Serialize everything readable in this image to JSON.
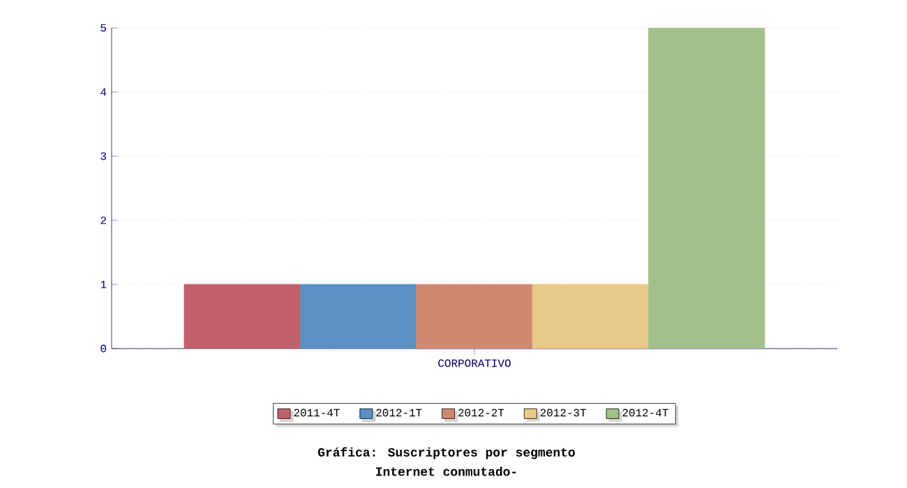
{
  "chart_data": {
    "type": "bar",
    "title": "Gráfica: Suscriptores por segmento",
    "subtitle": "Internet conmutado-",
    "categories": [
      "CORPORATIVO"
    ],
    "series": [
      {
        "name": "2011-4T",
        "color": "#c0606a",
        "values": [
          1
        ]
      },
      {
        "name": "2012-1T",
        "color": "#5b90c3",
        "values": [
          1
        ]
      },
      {
        "name": "2012-2T",
        "color": "#d08870",
        "values": [
          1
        ]
      },
      {
        "name": "2012-3T",
        "color": "#e9c98a",
        "values": [
          1
        ]
      },
      {
        "name": "2012-4T",
        "color": "#a3c08a",
        "values": [
          5
        ]
      }
    ],
    "ylim": [
      0,
      5
    ],
    "yticks": [
      0,
      1,
      2,
      3,
      4,
      5
    ],
    "grid": "y",
    "legend": "bottom"
  }
}
